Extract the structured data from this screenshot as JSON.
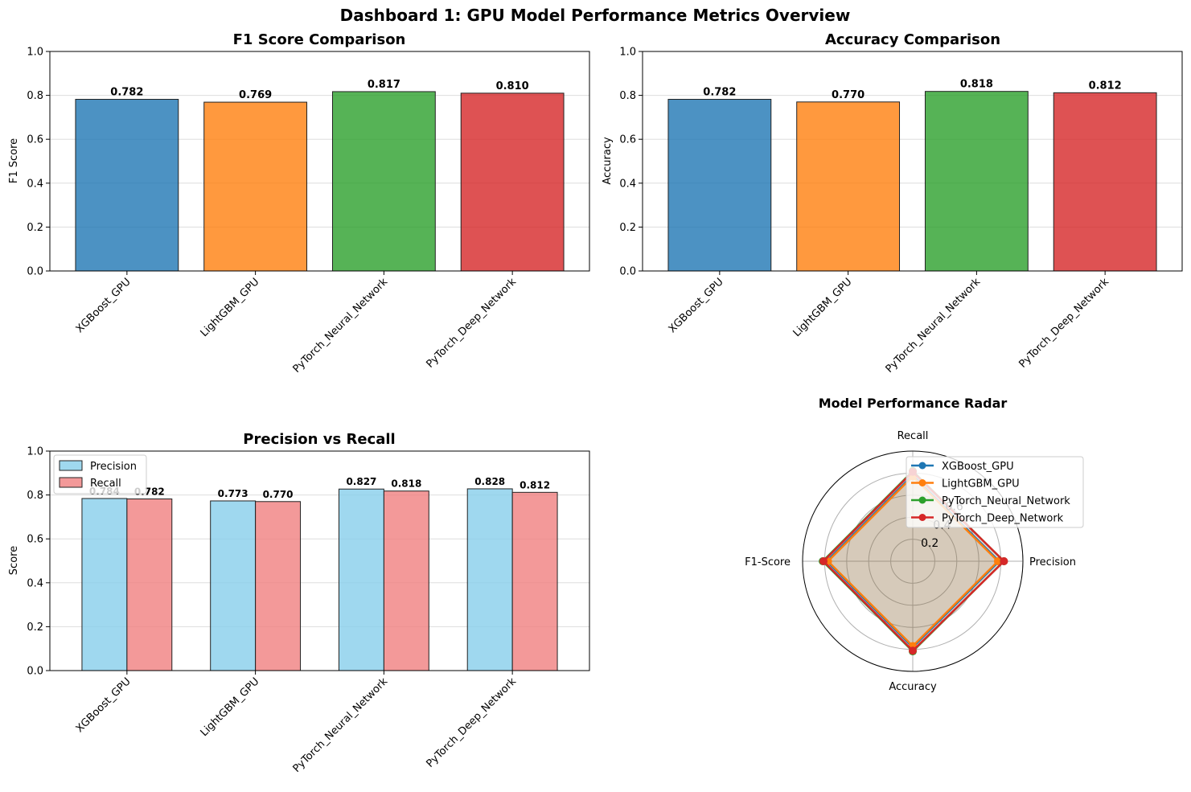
{
  "suptitle": "Dashboard 1: GPU Model Performance Metrics Overview",
  "colors": {
    "model": [
      "#1f77b4",
      "#ff7f0e",
      "#2ca02c",
      "#d62728"
    ],
    "precision": "#87ceeb",
    "recall": "#f08080",
    "radar_fill": "#b0a08a"
  },
  "chart_data": [
    {
      "id": "f1",
      "type": "bar",
      "title": "F1 Score Comparison",
      "ylabel": "F1 Score",
      "categories": [
        "XGBoost_GPU",
        "LightGBM_GPU",
        "PyTorch_Neural_Network",
        "PyTorch_Deep_Network"
      ],
      "values": [
        0.782,
        0.769,
        0.817,
        0.81
      ],
      "value_labels": [
        "0.782",
        "0.769",
        "0.817",
        "0.810"
      ],
      "ylim": [
        0,
        1.0
      ],
      "yticks": [
        "0.0",
        "0.2",
        "0.4",
        "0.6",
        "0.8",
        "1.0"
      ],
      "grid": "y"
    },
    {
      "id": "acc",
      "type": "bar",
      "title": "Accuracy Comparison",
      "ylabel": "Accuracy",
      "categories": [
        "XGBoost_GPU",
        "LightGBM_GPU",
        "PyTorch_Neural_Network",
        "PyTorch_Deep_Network"
      ],
      "values": [
        0.782,
        0.77,
        0.818,
        0.812
      ],
      "value_labels": [
        "0.782",
        "0.770",
        "0.818",
        "0.812"
      ],
      "ylim": [
        0,
        1.0
      ],
      "yticks": [
        "0.0",
        "0.2",
        "0.4",
        "0.6",
        "0.8",
        "1.0"
      ],
      "grid": "y"
    },
    {
      "id": "pr",
      "type": "bar",
      "title": "Precision vs Recall",
      "ylabel": "Score",
      "categories": [
        "XGBoost_GPU",
        "LightGBM_GPU",
        "PyTorch_Neural_Network",
        "PyTorch_Deep_Network"
      ],
      "series": [
        {
          "name": "Precision",
          "values": [
            0.784,
            0.773,
            0.827,
            0.828
          ],
          "value_labels": [
            "0.784",
            "0.773",
            "0.827",
            "0.828"
          ]
        },
        {
          "name": "Recall",
          "values": [
            0.782,
            0.77,
            0.818,
            0.812
          ],
          "value_labels": [
            "0.782",
            "0.770",
            "0.818",
            "0.812"
          ]
        }
      ],
      "ylim": [
        0,
        1.0
      ],
      "yticks": [
        "0.0",
        "0.2",
        "0.4",
        "0.6",
        "0.8",
        "1.0"
      ],
      "legend": "top-left",
      "grid": "y"
    },
    {
      "id": "radar",
      "type": "radar",
      "title": "Model Performance Radar",
      "axes": [
        "Precision",
        "Recall",
        "F1-Score",
        "Accuracy"
      ],
      "rticks": [
        "0.2",
        "0.4",
        "0.6"
      ],
      "rlim": [
        0,
        1.0
      ],
      "legend": "top-right",
      "series": [
        {
          "name": "XGBoost_GPU",
          "values": [
            0.784,
            0.782,
            0.782,
            0.782
          ]
        },
        {
          "name": "LightGBM_GPU",
          "values": [
            0.773,
            0.77,
            0.769,
            0.77
          ]
        },
        {
          "name": "PyTorch_Neural_Network",
          "values": [
            0.827,
            0.818,
            0.817,
            0.818
          ]
        },
        {
          "name": "PyTorch_Deep_Network",
          "values": [
            0.828,
            0.812,
            0.81,
            0.812
          ]
        }
      ]
    }
  ]
}
